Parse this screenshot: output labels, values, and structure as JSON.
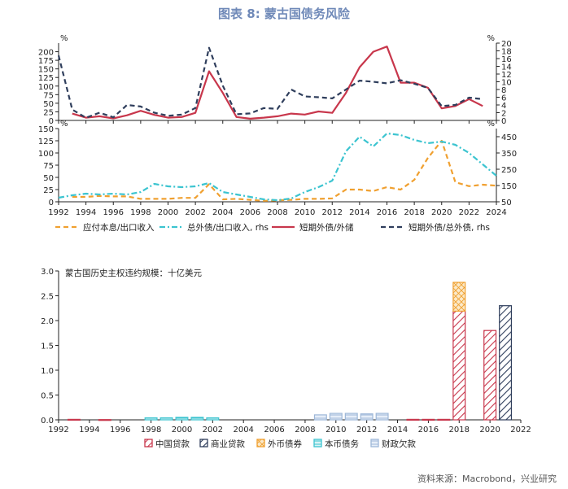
{
  "figure": {
    "title": "图表 8: 蒙古国债务风险",
    "source": "资料来源：Macrobond，兴业研究"
  },
  "chart_data": [
    {
      "type": "line",
      "panel": "top",
      "x_ticks": [
        1992,
        1994,
        1996,
        1998,
        2000,
        2002,
        2004,
        2006,
        2008,
        2010,
        2012,
        2014,
        2016,
        2018,
        2020,
        2022,
        2024
      ],
      "x_range": [
        1992,
        2024
      ],
      "left_axis": {
        "unit": "%",
        "ylim": [
          0,
          225
        ],
        "ticks": [
          0,
          25,
          50,
          75,
          100,
          125,
          150,
          175,
          200
        ]
      },
      "right_axis": {
        "unit": "%",
        "ylim": [
          0,
          20
        ],
        "ticks": [
          0,
          2,
          4,
          6,
          8,
          10,
          12,
          14,
          16,
          18,
          20
        ]
      },
      "series": [
        {
          "name": "短期外债/外储",
          "axis": "left",
          "color": "#c8374c",
          "dash": "solid",
          "points": [
            [
              1993,
              20
            ],
            [
              1994,
              8
            ],
            [
              1995,
              12
            ],
            [
              1996,
              6
            ],
            [
              1997,
              15
            ],
            [
              1998,
              28
            ],
            [
              1999,
              16
            ],
            [
              2000,
              8
            ],
            [
              2001,
              10
            ],
            [
              2002,
              22
            ],
            [
              2003,
              143
            ],
            [
              2004,
              80
            ],
            [
              2005,
              10
            ],
            [
              2006,
              5
            ],
            [
              2007,
              8
            ],
            [
              2008,
              12
            ],
            [
              2009,
              20
            ],
            [
              2010,
              17
            ],
            [
              2011,
              26
            ],
            [
              2012,
              22
            ],
            [
              2013,
              80
            ],
            [
              2014,
              155
            ],
            [
              2015,
              200
            ],
            [
              2016,
              215
            ],
            [
              2017,
              110
            ],
            [
              2018,
              110
            ],
            [
              2019,
              95
            ],
            [
              2020,
              35
            ],
            [
              2021,
              42
            ],
            [
              2022,
              62
            ],
            [
              2023,
              42
            ]
          ]
        },
        {
          "name": "短期外债/总外债, rhs",
          "axis": "right",
          "color": "#2f3e5c",
          "dash": "dashed",
          "points": [
            [
              1992,
              16.8
            ],
            [
              1993,
              2.8
            ],
            [
              1994,
              0.7
            ],
            [
              1995,
              2
            ],
            [
              1996,
              0.8
            ],
            [
              1997,
              4
            ],
            [
              1998,
              3.6
            ],
            [
              1999,
              2
            ],
            [
              2000,
              1.2
            ],
            [
              2001,
              1.5
            ],
            [
              2002,
              3.2
            ],
            [
              2003,
              18.8
            ],
            [
              2004,
              9
            ],
            [
              2005,
              1.6
            ],
            [
              2006,
              1.8
            ],
            [
              2007,
              3.2
            ],
            [
              2008,
              3
            ],
            [
              2009,
              8
            ],
            [
              2010,
              6.2
            ],
            [
              2011,
              6
            ],
            [
              2012,
              5.7
            ],
            [
              2013,
              8
            ],
            [
              2014,
              10.3
            ],
            [
              2015,
              10
            ],
            [
              2016,
              9.6
            ],
            [
              2017,
              10.4
            ],
            [
              2018,
              9.5
            ],
            [
              2019,
              8.4
            ],
            [
              2020,
              3.7
            ],
            [
              2021,
              4
            ],
            [
              2022,
              5.9
            ],
            [
              2023,
              5.5
            ]
          ]
        }
      ]
    },
    {
      "type": "line",
      "panel": "middle",
      "x_ticks": [
        1992,
        1994,
        1996,
        1998,
        2000,
        2002,
        2004,
        2006,
        2008,
        2010,
        2012,
        2014,
        2016,
        2018,
        2020,
        2022,
        2024
      ],
      "x_tick_labels": [
        "1992",
        "1994",
        "1996",
        "1998",
        "2000",
        "2002",
        "2004",
        "2006",
        "2008",
        "2010",
        "2012",
        "2014",
        "2016",
        "2018",
        "2020",
        "2022",
        "2024"
      ],
      "x_range": [
        1992,
        2024
      ],
      "left_axis": {
        "unit": "%",
        "ylim": [
          0,
          150
        ],
        "ticks": [
          0,
          25,
          50,
          75,
          100,
          125,
          150
        ]
      },
      "right_axis": {
        "unit": "%",
        "ylim": [
          50,
          500
        ],
        "ticks": [
          50,
          150,
          250,
          350,
          450
        ]
      },
      "series": [
        {
          "name": "应付本息/出口收入",
          "axis": "left",
          "color": "#f0a030",
          "dash": "dashed",
          "points": [
            [
              1993,
              10
            ],
            [
              1994,
              10
            ],
            [
              1995,
              12
            ],
            [
              1996,
              11
            ],
            [
              1997,
              11
            ],
            [
              1998,
              6
            ],
            [
              1999,
              6
            ],
            [
              2000,
              6
            ],
            [
              2001,
              8
            ],
            [
              2002,
              8
            ],
            [
              2003,
              36
            ],
            [
              2004,
              5
            ],
            [
              2005,
              6
            ],
            [
              2006,
              4
            ],
            [
              2007,
              2
            ],
            [
              2008,
              3
            ],
            [
              2009,
              4
            ],
            [
              2010,
              6
            ],
            [
              2011,
              6
            ],
            [
              2012,
              7
            ],
            [
              2013,
              25
            ],
            [
              2014,
              25
            ],
            [
              2015,
              22
            ],
            [
              2016,
              30
            ],
            [
              2017,
              25
            ],
            [
              2018,
              45
            ],
            [
              2019,
              90
            ],
            [
              2020,
              125
            ],
            [
              2021,
              40
            ],
            [
              2022,
              32
            ],
            [
              2023,
              35
            ],
            [
              2024,
              33
            ]
          ]
        },
        {
          "name": "总外债/出口收入, rhs",
          "axis": "right",
          "color": "#3cc4d0",
          "dash": "dashdot",
          "points": [
            [
              1992,
              75
            ],
            [
              1993,
              90
            ],
            [
              1994,
              100
            ],
            [
              1995,
              95
            ],
            [
              1996,
              100
            ],
            [
              1997,
              95
            ],
            [
              1998,
              110
            ],
            [
              1999,
              160
            ],
            [
              2000,
              145
            ],
            [
              2001,
              140
            ],
            [
              2002,
              145
            ],
            [
              2003,
              165
            ],
            [
              2004,
              110
            ],
            [
              2005,
              95
            ],
            [
              2006,
              80
            ],
            [
              2007,
              65
            ],
            [
              2008,
              60
            ],
            [
              2009,
              70
            ],
            [
              2010,
              110
            ],
            [
              2011,
              140
            ],
            [
              2012,
              180
            ],
            [
              2013,
              360
            ],
            [
              2014,
              450
            ],
            [
              2015,
              390
            ],
            [
              2016,
              470
            ],
            [
              2017,
              460
            ],
            [
              2018,
              430
            ],
            [
              2019,
              410
            ],
            [
              2020,
              420
            ],
            [
              2021,
              400
            ],
            [
              2022,
              350
            ],
            [
              2023,
              280
            ],
            [
              2024,
              210
            ]
          ]
        }
      ]
    },
    {
      "type": "bar",
      "panel": "bottom",
      "title": "蒙古国历史主权违约规模：十亿美元",
      "x_ticks": [
        1992,
        1994,
        1996,
        1998,
        2000,
        2002,
        2004,
        2006,
        2008,
        2010,
        2012,
        2014,
        2016,
        2018,
        2020,
        2022
      ],
      "x_range": [
        1992,
        2022
      ],
      "ylim": [
        0,
        3.0
      ],
      "y_ticks": [
        0.0,
        0.5,
        1.0,
        1.5,
        2.0,
        2.5,
        3.0
      ],
      "series": [
        {
          "name": "中国贷款",
          "color": "#c8374c",
          "values": [
            [
              1993,
              0.01
            ],
            [
              1995,
              0.005
            ],
            [
              2015,
              0.01
            ],
            [
              2016,
              0.01
            ],
            [
              2017,
              0.01
            ],
            [
              2018,
              2.19
            ],
            [
              2020,
              1.8
            ]
          ]
        },
        {
          "name": "商业贷款",
          "color": "#2f3e5c",
          "values": [
            [
              2021,
              2.3
            ]
          ]
        },
        {
          "name": "外币债券",
          "color": "#f0a030",
          "values": [
            [
              2018,
              0.58
            ]
          ]
        },
        {
          "name": "本币债务",
          "color": "#3cc4d0",
          "values": [
            [
              1998,
              0.04
            ],
            [
              1999,
              0.04
            ],
            [
              2000,
              0.05
            ],
            [
              2001,
              0.05
            ],
            [
              2002,
              0.04
            ]
          ]
        },
        {
          "name": "财政欠款",
          "color": "#9db7d8",
          "values": [
            [
              2009,
              0.1
            ],
            [
              2010,
              0.13
            ],
            [
              2011,
              0.13
            ],
            [
              2012,
              0.12
            ],
            [
              2013,
              0.13
            ]
          ]
        }
      ],
      "legend_position": "bottom"
    }
  ]
}
